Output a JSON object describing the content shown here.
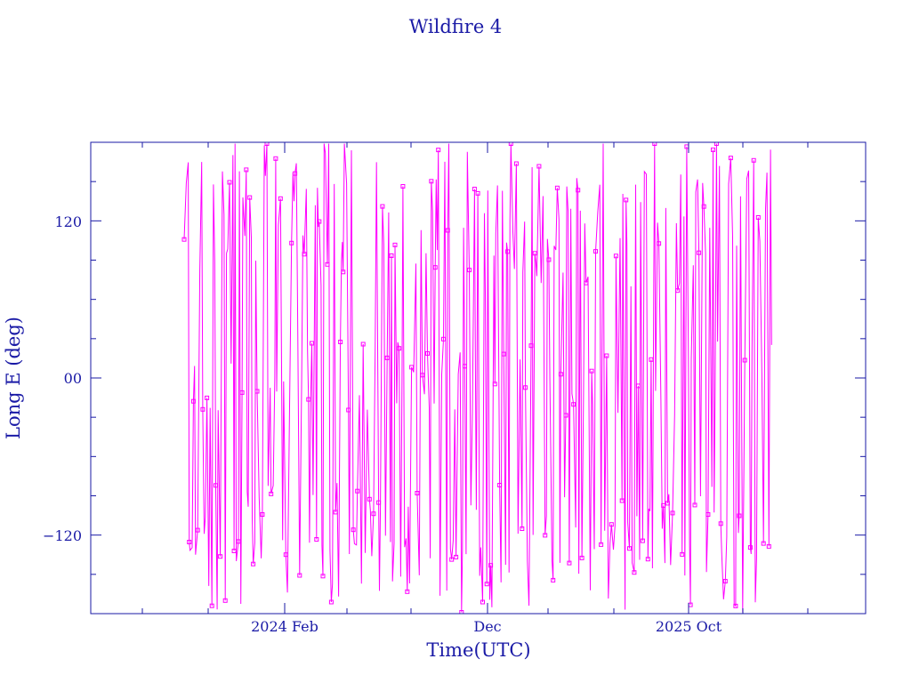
{
  "chart_data": {
    "type": "line",
    "title": "Wildfire 4",
    "xlabel": "Time(UTC)",
    "ylabel": "Long E (deg)",
    "x_ticks": [
      "2024 Feb",
      "Dec",
      "2025 Oct"
    ],
    "y_ticks": [
      "120",
      "00",
      "−120"
    ],
    "x_range": [
      "2023-07",
      "2026-09"
    ],
    "data_start": "2023-09-20",
    "data_end": "2026-03-15",
    "ylim": [
      -180,
      180
    ],
    "ytick_values": [
      120,
      0,
      -120
    ],
    "grid": false,
    "legend": "none",
    "marker": "square",
    "series": [
      {
        "color": "#ff00ff",
        "note_not_rendered": "",
        "x": [],
        "y": []
      }
    ]
  },
  "colors": {
    "axis": "#1a1aa6",
    "series": "#ff00ff",
    "background": "#ffffff"
  }
}
